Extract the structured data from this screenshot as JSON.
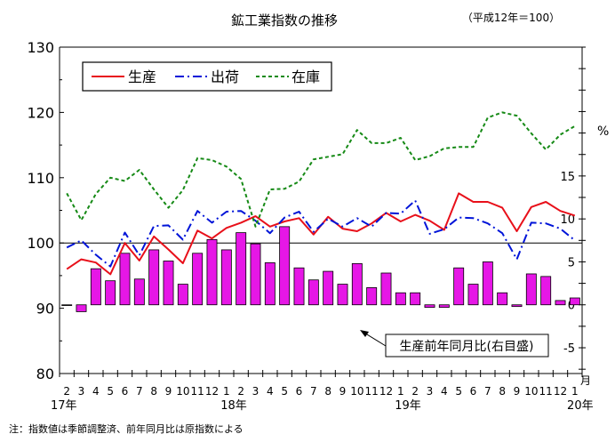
{
  "chart_data": {
    "type": "line",
    "title": "鉱工業指数の推移",
    "subtitle": "（平成12年＝100）",
    "left_axis": {
      "ylim": [
        80,
        130
      ],
      "ticks": [
        80,
        90,
        100,
        110,
        120,
        130
      ]
    },
    "right_axis": {
      "label": "%",
      "ylim": [
        -8,
        30
      ],
      "ticks": [
        "15",
        "10",
        "5",
        "0",
        "-5"
      ],
      "tick_values": [
        15,
        10,
        5,
        0,
        -5
      ]
    },
    "x_month_labels": [
      "2",
      "3",
      "4",
      "5",
      "6",
      "7",
      "8",
      "9",
      "10",
      "11",
      "12",
      "1",
      "2",
      "3",
      "4",
      "5",
      "6",
      "7",
      "8",
      "9",
      "10",
      "11",
      "12",
      "1",
      "2",
      "3",
      "4",
      "5",
      "6",
      "7",
      "8",
      "9",
      "10",
      "11",
      "12",
      "1"
    ],
    "x_unit_label": "月",
    "x_year_labels": [
      {
        "label": "17年",
        "index": 0
      },
      {
        "label": "18年",
        "index": 11.5
      },
      {
        "label": "19年",
        "index": 23.5
      },
      {
        "label": "20年",
        "index": 35
      }
    ],
    "reference_line": 100,
    "series": [
      {
        "name": "生産",
        "axis": "left",
        "style": "solid",
        "color": "#e8101a",
        "values": [
          96.0,
          97.5,
          97.0,
          95.2,
          100.0,
          97.3,
          101.0,
          99.0,
          96.9,
          101.9,
          100.7,
          102.3,
          103.1,
          104.1,
          102.5,
          103.3,
          103.8,
          101.3,
          104.0,
          102.2,
          101.8,
          103.0,
          104.6,
          103.3,
          104.3,
          103.4,
          102.0,
          107.6,
          106.3,
          106.3,
          105.4,
          101.8,
          105.5,
          106.3,
          104.9,
          104.2
        ]
      },
      {
        "name": "出荷",
        "axis": "left",
        "style": "dashdot",
        "color": "#0014d8",
        "values": [
          99.3,
          100.4,
          98.2,
          96.4,
          101.6,
          98.1,
          102.6,
          102.7,
          100.5,
          104.9,
          103.1,
          104.8,
          104.9,
          103.4,
          101.5,
          103.9,
          104.8,
          101.7,
          103.7,
          102.5,
          103.8,
          102.5,
          104.6,
          104.5,
          106.5,
          101.4,
          102.1,
          103.9,
          103.8,
          103.0,
          101.5,
          97.5,
          103.1,
          103.0,
          102.2,
          100.4
        ]
      },
      {
        "name": "在庫",
        "axis": "left",
        "style": "dashed",
        "color": "#168a16",
        "values": [
          107.6,
          103.5,
          107.5,
          110.0,
          109.5,
          111.2,
          108.2,
          105.4,
          108.1,
          113.0,
          112.7,
          111.7,
          109.8,
          102.5,
          108.2,
          108.3,
          109.4,
          112.8,
          113.2,
          113.6,
          117.3,
          115.3,
          115.3,
          116.1,
          112.7,
          113.3,
          114.5,
          114.7,
          114.7,
          119.2,
          120.0,
          119.5,
          116.8,
          114.3,
          116.6,
          117.9
        ]
      }
    ],
    "bars": {
      "name": "生産前年同月比（右目盛）",
      "axis": "right",
      "color": "#e617e6",
      "values": [
        0.0,
        -0.8,
        4.2,
        2.8,
        6.0,
        3.0,
        6.4,
        5.1,
        2.4,
        6.0,
        7.6,
        6.4,
        8.4,
        7.1,
        4.9,
        9.1,
        4.3,
        2.9,
        3.9,
        2.4,
        4.8,
        2.0,
        3.7,
        1.4,
        1.4,
        -0.3,
        -0.3,
        4.3,
        2.4,
        5.0,
        1.4,
        -0.2,
        3.6,
        3.3,
        0.5,
        0.8
      ]
    },
    "annotation": "生産前年同月比(右目盛)",
    "legend_position": "top-left"
  },
  "footnote": "注：指数値は季節調整済、前年同月比は原指数による"
}
